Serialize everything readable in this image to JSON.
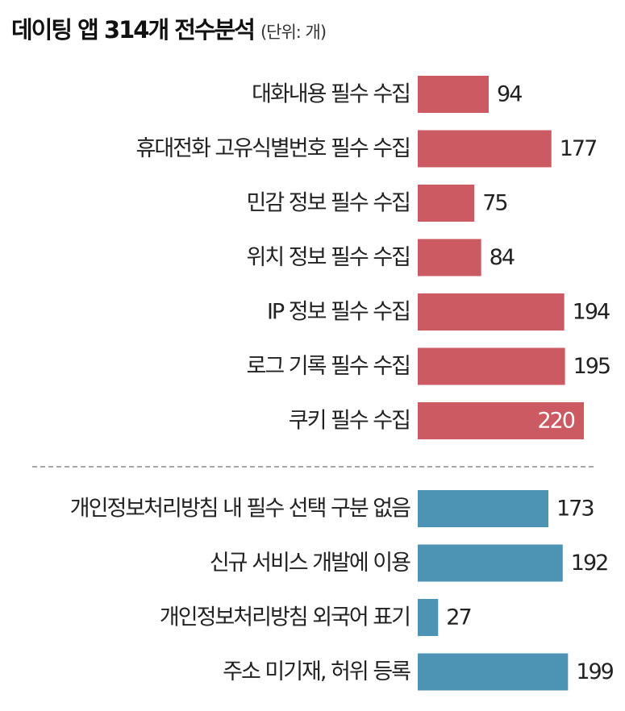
{
  "title": "데이팅 앱 314개 전수분석",
  "unit": "(단위: 개)",
  "colors": {
    "group1": "#cc5a62",
    "group2": "#4d93b4",
    "divider": "#8a8a8a"
  },
  "chart_data": {
    "type": "bar",
    "orientation": "horizontal",
    "xlim": [
      0,
      220
    ],
    "groups": [
      {
        "color": "#cc5a62",
        "categories": [
          "대화내용 필수 수집",
          "휴대전화 고유식별번호 필수 수집",
          "민감 정보 필수 수집",
          "위치 정보 필수 수집",
          "IP 정보 필수 수집",
          "로그 기록 필수 수집",
          "쿠키 필수 수집"
        ],
        "values": [
          94,
          177,
          75,
          84,
          194,
          195,
          220
        ]
      },
      {
        "color": "#4d93b4",
        "categories": [
          "개인정보처리방침 내 필수 선택 구분 없음",
          "신규 서비스 개발에 이용",
          "개인정보처리방침 외국어 표기",
          "주소 미기재, 허위 등록"
        ],
        "values": [
          173,
          192,
          27,
          199
        ]
      }
    ]
  }
}
